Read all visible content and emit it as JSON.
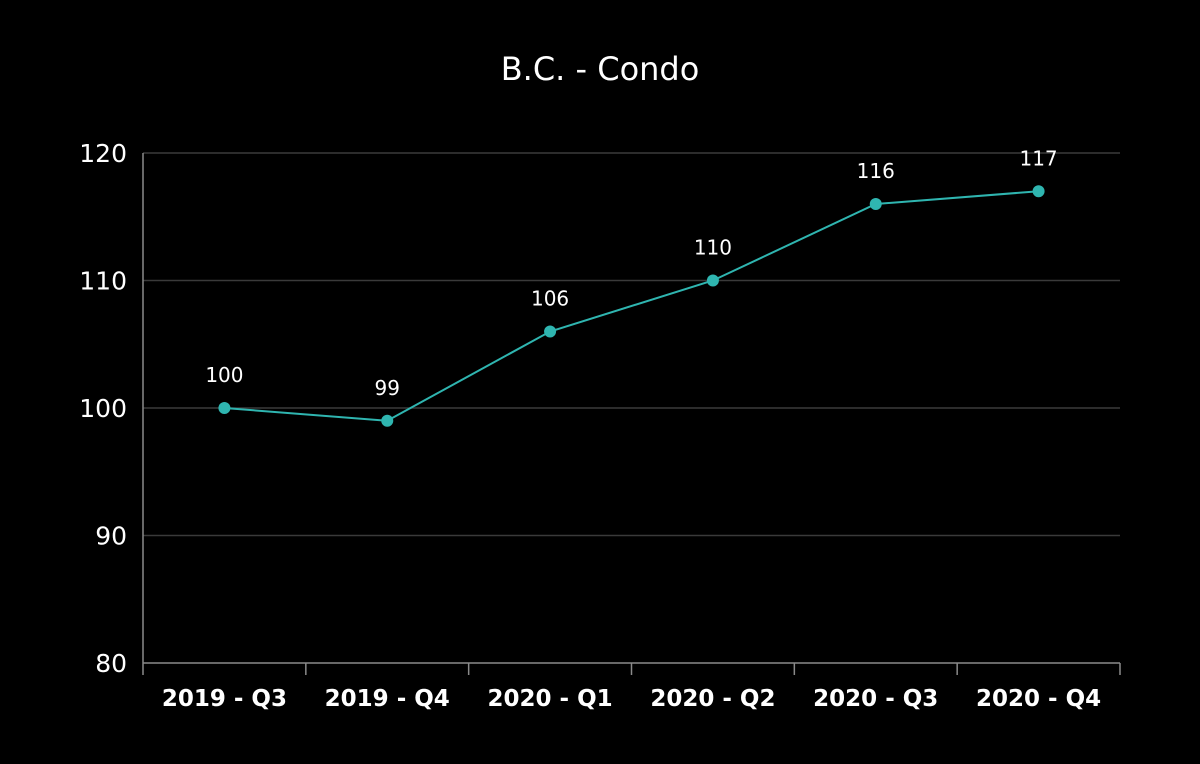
{
  "chart_data": {
    "type": "line",
    "title": "B.C. - Condo",
    "xlabel": "",
    "ylabel": "",
    "categories": [
      "2019 - Q3",
      "2019 - Q4",
      "2020 - Q1",
      "2020 - Q2",
      "2020 - Q3",
      "2020 - Q4"
    ],
    "series": [
      {
        "values": [
          100,
          99,
          106,
          110,
          116,
          117
        ]
      }
    ],
    "ylim": [
      80,
      120
    ],
    "yticks": [
      80,
      90,
      100,
      110,
      120
    ],
    "grid": true,
    "legend": "none",
    "data_labels": true
  },
  "colors": {
    "background": "#000000",
    "series_line": "#2fb5b0",
    "gridline": "#3a3a3a",
    "axis": "#8a8a8a",
    "text": "#ffffff"
  }
}
